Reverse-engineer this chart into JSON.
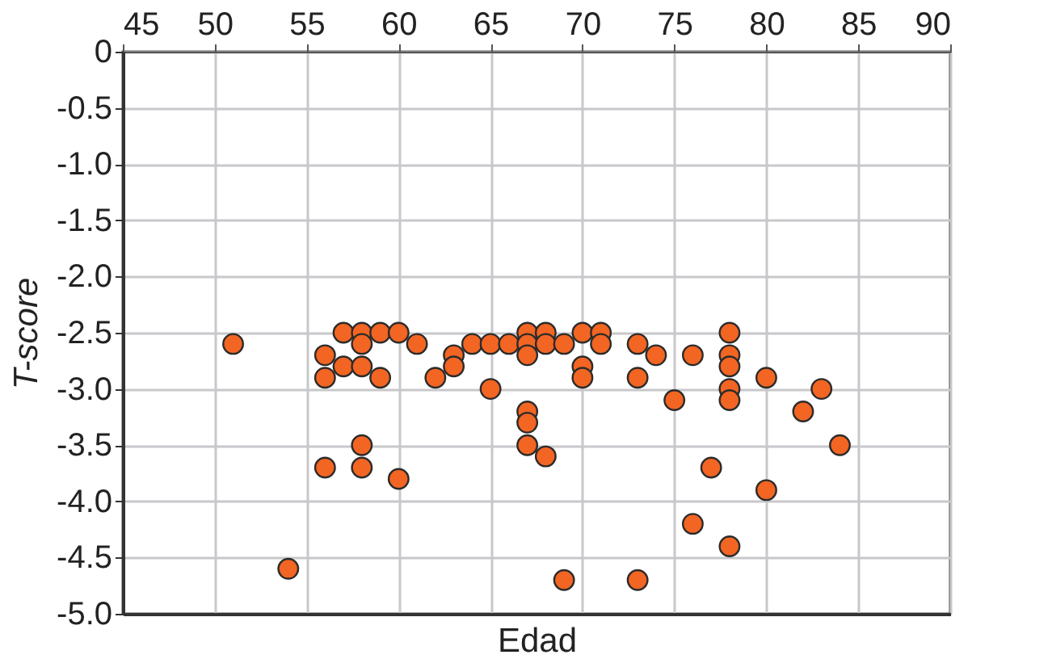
{
  "chart_data": {
    "type": "scatter",
    "xlabel": "Edad",
    "ylabel": "T-score",
    "xlim": [
      45,
      90
    ],
    "xticks": [
      45,
      50,
      55,
      60,
      65,
      70,
      75,
      80,
      85,
      90
    ],
    "ylim": [
      -5,
      0
    ],
    "yticks": [
      {
        "value": 0,
        "label": "0"
      },
      -0.5,
      {
        "value": -1,
        "label": "-1.0"
      },
      -1.5,
      {
        "value": -2,
        "label": "-2.0"
      },
      -2.5,
      {
        "value": -3,
        "label": "-3.0"
      },
      -3.5,
      {
        "value": -4,
        "label": "-4.0"
      },
      -4.5,
      {
        "value": -5,
        "label": "-5.0"
      }
    ],
    "grid": true,
    "marker": "circle",
    "series": [
      {
        "color": "#f26522",
        "x": [
          51,
          54,
          56,
          56,
          56,
          57,
          57,
          58,
          58,
          58,
          58,
          58,
          59,
          59,
          60,
          60,
          61,
          62,
          63,
          63,
          64,
          65,
          65,
          66,
          67,
          67,
          67,
          67,
          67,
          67,
          68,
          68,
          68,
          69,
          69,
          70,
          70,
          70,
          71,
          71,
          73,
          73,
          73,
          74,
          75,
          76,
          76,
          77,
          78,
          78,
          78,
          78,
          78,
          78,
          80,
          80,
          82,
          83,
          84
        ],
        "values": [
          -2.6,
          -4.6,
          -2.7,
          -2.9,
          -3.7,
          -2.5,
          -2.8,
          -2.5,
          -2.6,
          -2.8,
          -3.5,
          -3.7,
          -2.5,
          -2.9,
          -2.5,
          -3.8,
          -2.6,
          -2.9,
          -2.7,
          -2.8,
          -2.6,
          -2.6,
          -3.0,
          -2.6,
          -2.5,
          -2.6,
          -2.7,
          -3.2,
          -3.3,
          -3.5,
          -2.5,
          -2.6,
          -3.6,
          -2.6,
          -4.7,
          -2.5,
          -2.8,
          -2.9,
          -2.5,
          -2.6,
          -2.6,
          -2.9,
          -4.7,
          -2.7,
          -3.1,
          -2.7,
          -4.2,
          -3.7,
          -2.5,
          -2.7,
          -2.8,
          -3.0,
          -3.1,
          -4.4,
          -2.9,
          -3.9,
          -3.2,
          -3.0,
          -3.5
        ]
      }
    ]
  }
}
